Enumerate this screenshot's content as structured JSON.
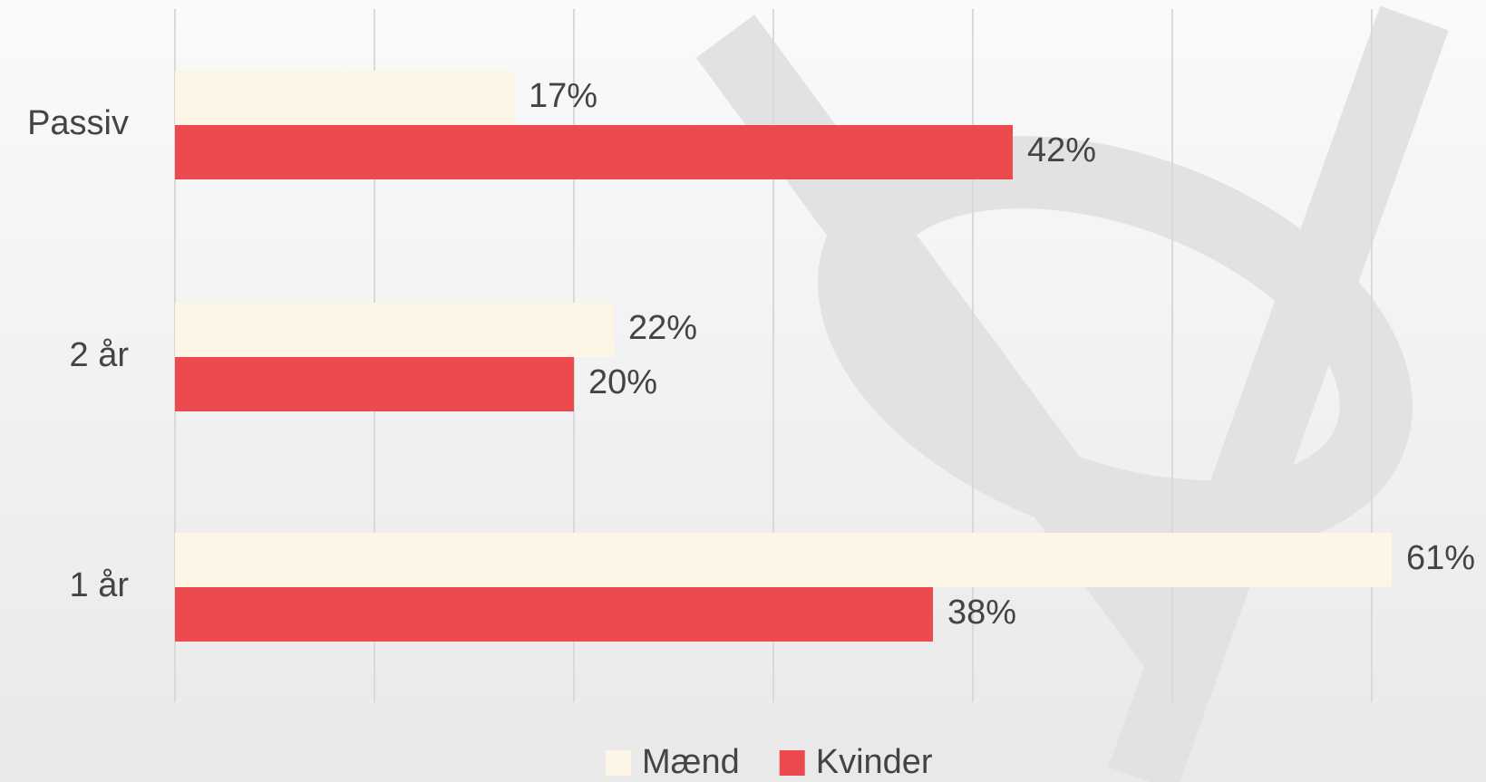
{
  "chart_data": {
    "type": "barh",
    "categories": [
      "Passiv",
      "2 år",
      "1 år"
    ],
    "series": [
      {
        "name": "Mænd",
        "color": "#fdf5e6",
        "values": [
          17,
          22,
          61
        ],
        "value_labels": [
          "17%",
          "22%",
          "61%"
        ]
      },
      {
        "name": "Kvinder",
        "color": "#ec4a4f",
        "values": [
          42,
          20,
          38
        ],
        "value_labels": [
          "42%",
          "20%",
          "38%"
        ]
      }
    ],
    "xlim": [
      0,
      60
    ],
    "xticks": [
      0,
      10,
      20,
      30,
      40,
      50,
      60
    ],
    "grid": true,
    "legend": "bottom"
  }
}
